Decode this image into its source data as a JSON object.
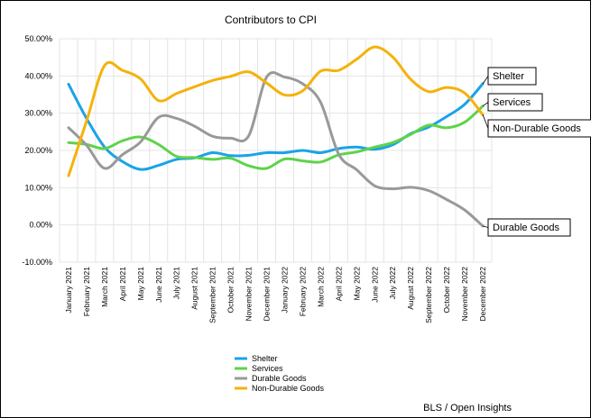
{
  "chart_data": {
    "type": "line",
    "title": "Contributors to CPI",
    "source": "BLS / Open Insights",
    "xlabel": "",
    "ylabel": "",
    "ylim": [
      -10,
      50
    ],
    "yticks": [
      {
        "v": 50,
        "label": "50.00%"
      },
      {
        "v": 40,
        "label": "40.00%"
      },
      {
        "v": 30,
        "label": "30.00%"
      },
      {
        "v": 20,
        "label": "20.00%"
      },
      {
        "v": 10,
        "label": "10.00%"
      },
      {
        "v": 0,
        "label": "0.00%"
      },
      {
        "v": -10,
        "label": "-10.00%"
      }
    ],
    "grid": true,
    "legend_position": "bottom-center",
    "categories": [
      "January 2021",
      "February 2021",
      "March 2021",
      "April 2021",
      "May 2021",
      "June 2021",
      "July 2021",
      "August 2021",
      "September 2021",
      "October 2021",
      "November 2021",
      "December 2021",
      "January 2022",
      "February 2022",
      "March 2022",
      "April 2022",
      "May 2022",
      "June 2022",
      "July 2022",
      "August 2022",
      "September 2022",
      "October 2022",
      "November 2022",
      "December 2022"
    ],
    "series": [
      {
        "name": "Shelter",
        "color": "#1aa3e8",
        "values": [
          37.8,
          28.6,
          20.9,
          17.0,
          14.9,
          16.0,
          17.6,
          18.0,
          19.4,
          18.6,
          18.7,
          19.4,
          19.4,
          20.0,
          19.4,
          20.5,
          20.9,
          20.3,
          21.5,
          24.5,
          26.3,
          29.1,
          32.4,
          37.9
        ]
      },
      {
        "name": "Services",
        "color": "#5ed34a",
        "values": [
          22.1,
          21.6,
          20.5,
          22.6,
          23.6,
          21.6,
          18.4,
          18.1,
          17.6,
          17.9,
          15.9,
          15.2,
          17.7,
          17.2,
          16.9,
          18.8,
          19.6,
          20.9,
          22.1,
          24.3,
          26.8,
          26.1,
          27.6,
          31.9
        ]
      },
      {
        "name": "Durable Goods",
        "color": "#999999",
        "values": [
          26.1,
          21.4,
          15.2,
          18.9,
          22.3,
          28.9,
          28.6,
          26.5,
          23.8,
          23.3,
          23.9,
          39.7,
          39.7,
          37.9,
          32.9,
          19.0,
          14.8,
          10.5,
          9.7,
          10.1,
          9.2,
          6.8,
          4.0,
          -0.3
        ]
      },
      {
        "name": "Non-Durable Goods",
        "color": "#f4b20b",
        "values": [
          13.2,
          27.9,
          42.8,
          41.5,
          39.2,
          33.4,
          35.3,
          37.1,
          38.8,
          39.9,
          41.1,
          38.1,
          34.9,
          36.0,
          41.3,
          41.5,
          44.5,
          47.8,
          45.1,
          39.1,
          35.8,
          36.9,
          35.4,
          29.6
        ]
      }
    ],
    "callouts": [
      {
        "series": "Shelter",
        "label": "Shelter"
      },
      {
        "series": "Services",
        "label": "Services"
      },
      {
        "series": "Non-Durable Goods",
        "label": "Non-Durable Goods"
      },
      {
        "series": "Durable Goods",
        "label": "Durable Goods"
      }
    ]
  }
}
